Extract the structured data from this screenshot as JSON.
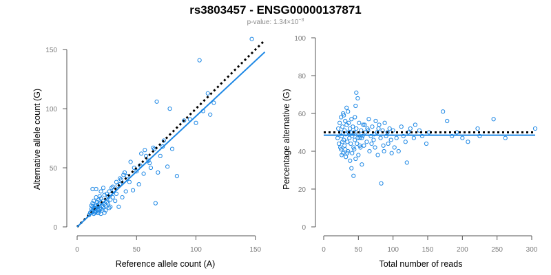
{
  "header": {
    "title": "rs3803457 - ENSG00000137871",
    "subtitle_prefix": "p-value: 1.34×10",
    "subtitle_exp": "−3"
  },
  "colors": {
    "points": "#1e88e5",
    "fit": "#1e88e5",
    "reference": "#000000"
  },
  "chart_data": [
    {
      "type": "scatter",
      "xlabel": "Reference allele count (A)",
      "ylabel": "Alternative allele count (G)",
      "xlim": [
        0,
        160
      ],
      "ylim": [
        0,
        160
      ],
      "xticks": [
        0,
        50,
        100,
        150
      ],
      "yticks": [
        0,
        50,
        100,
        150
      ],
      "fit_line": {
        "x": [
          0,
          158
        ],
        "y": [
          0,
          148
        ]
      },
      "reference_line": {
        "x": [
          0,
          158
        ],
        "y": [
          0,
          158
        ]
      },
      "points": [
        [
          12,
          12
        ],
        [
          13,
          14
        ],
        [
          12,
          18
        ],
        [
          14,
          11
        ],
        [
          15,
          16
        ],
        [
          16,
          13
        ],
        [
          13,
          20
        ],
        [
          17,
          17
        ],
        [
          18,
          12
        ],
        [
          14,
          22
        ],
        [
          19,
          20
        ],
        [
          20,
          15
        ],
        [
          16,
          25
        ],
        [
          21,
          18
        ],
        [
          22,
          22
        ],
        [
          18,
          14
        ],
        [
          23,
          12
        ],
        [
          15,
          12
        ],
        [
          17,
          21
        ],
        [
          20,
          11
        ],
        [
          24,
          18
        ],
        [
          25,
          21
        ],
        [
          13,
          32
        ],
        [
          16,
          32
        ],
        [
          26,
          26
        ],
        [
          27,
          16
        ],
        [
          19,
          26
        ],
        [
          28,
          23
        ],
        [
          30,
          25
        ],
        [
          31,
          31
        ],
        [
          33,
          28
        ],
        [
          34,
          35
        ],
        [
          22,
          33
        ],
        [
          35,
          17
        ],
        [
          37,
          40
        ],
        [
          38,
          25
        ],
        [
          40,
          46
        ],
        [
          42,
          43
        ],
        [
          44,
          38
        ],
        [
          45,
          55
        ],
        [
          47,
          31
        ],
        [
          50,
          47
        ],
        [
          52,
          36
        ],
        [
          54,
          62
        ],
        [
          56,
          45
        ],
        [
          58,
          60
        ],
        [
          60,
          56
        ],
        [
          62,
          50
        ],
        [
          64,
          67
        ],
        [
          66,
          20
        ],
        [
          67,
          106
        ],
        [
          68,
          46
        ],
        [
          70,
          60
        ],
        [
          73,
          73
        ],
        [
          76,
          51
        ],
        [
          78,
          100
        ],
        [
          80,
          66
        ],
        [
          84,
          43
        ],
        [
          90,
          90
        ],
        [
          95,
          91
        ],
        [
          100,
          88
        ],
        [
          103,
          141
        ],
        [
          106,
          98
        ],
        [
          110,
          113
        ],
        [
          112,
          95
        ],
        [
          115,
          105
        ],
        [
          147,
          159
        ],
        [
          20,
          30
        ],
        [
          25,
          28
        ],
        [
          29,
          33
        ],
        [
          32,
          22
        ],
        [
          36,
          36
        ],
        [
          39,
          44
        ],
        [
          41,
          30
        ],
        [
          12,
          15
        ],
        [
          13,
          13
        ],
        [
          14,
          16
        ],
        [
          15,
          13
        ],
        [
          16,
          18
        ],
        [
          17,
          12
        ],
        [
          18,
          19
        ],
        [
          19,
          15
        ],
        [
          21,
          14
        ],
        [
          22,
          17
        ],
        [
          23,
          19
        ],
        [
          24,
          14
        ],
        [
          26,
          20
        ],
        [
          28,
          17
        ],
        [
          10,
          10
        ],
        [
          11,
          12
        ],
        [
          13,
          17
        ],
        [
          15,
          18
        ],
        [
          18,
          23
        ],
        [
          20,
          24
        ],
        [
          23,
          27
        ],
        [
          27,
          30
        ],
        [
          30,
          34
        ],
        [
          33,
          38
        ],
        [
          36,
          41
        ],
        [
          48,
          50
        ],
        [
          53,
          52
        ],
        [
          57,
          65
        ],
        [
          61,
          54
        ],
        [
          65,
          66
        ],
        [
          72,
          68
        ]
      ]
    },
    {
      "type": "scatter",
      "xlabel": "Total number of reads",
      "ylabel": "Percentage alternative (G)",
      "xlim": [
        0,
        300
      ],
      "ylim": [
        0,
        100
      ],
      "xticks": [
        0,
        50,
        100,
        150,
        200,
        250,
        300
      ],
      "yticks": [
        0,
        20,
        40,
        60,
        80,
        100
      ],
      "fit_line": {
        "x": [
          0,
          305
        ],
        "y": [
          48.5,
          48.5
        ]
      },
      "reference_line": {
        "x": [
          0,
          305
        ],
        "y": [
          50,
          50
        ]
      },
      "points": [
        [
          20,
          47
        ],
        [
          21,
          52
        ],
        [
          22,
          44
        ],
        [
          23,
          55
        ],
        [
          24,
          50
        ],
        [
          25,
          41
        ],
        [
          25,
          58
        ],
        [
          26,
          48
        ],
        [
          27,
          53
        ],
        [
          28,
          39
        ],
        [
          28,
          60
        ],
        [
          29,
          46
        ],
        [
          30,
          51
        ],
        [
          30,
          43
        ],
        [
          31,
          56
        ],
        [
          32,
          37
        ],
        [
          32,
          49
        ],
        [
          33,
          54
        ],
        [
          34,
          45
        ],
        [
          35,
          61
        ],
        [
          35,
          40
        ],
        [
          36,
          50
        ],
        [
          37,
          47
        ],
        [
          38,
          52
        ],
        [
          38,
          35
        ],
        [
          39,
          44
        ],
        [
          40,
          57
        ],
        [
          40,
          31
        ],
        [
          41,
          48
        ],
        [
          42,
          53
        ],
        [
          43,
          27
        ],
        [
          43,
          42
        ],
        [
          44,
          50
        ],
        [
          45,
          46
        ],
        [
          45,
          58
        ],
        [
          46,
          36
        ],
        [
          47,
          71
        ],
        [
          47,
          52
        ],
        [
          48,
          44
        ],
        [
          49,
          68
        ],
        [
          50,
          49
        ],
        [
          50,
          38
        ],
        [
          51,
          55
        ],
        [
          52,
          47
        ],
        [
          53,
          42
        ],
        [
          54,
          51
        ],
        [
          55,
          33
        ],
        [
          56,
          48
        ],
        [
          57,
          54
        ],
        [
          58,
          43
        ],
        [
          60,
          50
        ],
        [
          62,
          45
        ],
        [
          63,
          52
        ],
        [
          65,
          57
        ],
        [
          66,
          40
        ],
        [
          68,
          48
        ],
        [
          70,
          53
        ],
        [
          72,
          46
        ],
        [
          74,
          42
        ],
        [
          75,
          56
        ],
        [
          77,
          50
        ],
        [
          78,
          38
        ],
        [
          80,
          54
        ],
        [
          82,
          47
        ],
        [
          83,
          23
        ],
        [
          85,
          51
        ],
        [
          87,
          40
        ],
        [
          88,
          55
        ],
        [
          90,
          48
        ],
        [
          93,
          44
        ],
        [
          95,
          52
        ],
        [
          98,
          39
        ],
        [
          100,
          51
        ],
        [
          102,
          42
        ],
        [
          105,
          47
        ],
        [
          108,
          40
        ],
        [
          112,
          53
        ],
        [
          115,
          48
        ],
        [
          118,
          45
        ],
        [
          120,
          34
        ],
        [
          122,
          50
        ],
        [
          125,
          52
        ],
        [
          130,
          47
        ],
        [
          132,
          54
        ],
        [
          138,
          51
        ],
        [
          142,
          48
        ],
        [
          148,
          44
        ],
        [
          152,
          50
        ],
        [
          172,
          61
        ],
        [
          178,
          56
        ],
        [
          185,
          48
        ],
        [
          192,
          50
        ],
        [
          200,
          47
        ],
        [
          208,
          45
        ],
        [
          222,
          52
        ],
        [
          225,
          48
        ],
        [
          245,
          57
        ],
        [
          262,
          47
        ],
        [
          305,
          52
        ],
        [
          24,
          42
        ],
        [
          26,
          38
        ],
        [
          27,
          45
        ],
        [
          29,
          59
        ],
        [
          31,
          41
        ],
        [
          33,
          63
        ],
        [
          34,
          39
        ],
        [
          36,
          55
        ],
        [
          39,
          50
        ],
        [
          41,
          39
        ],
        [
          44,
          41
        ],
        [
          46,
          64
        ],
        [
          49,
          47
        ],
        [
          52,
          43
        ],
        [
          55,
          47
        ],
        [
          59,
          54
        ],
        [
          64,
          51
        ],
        [
          69,
          44
        ],
        [
          73,
          49
        ],
        [
          79,
          52
        ],
        [
          86,
          43
        ],
        [
          92,
          50
        ],
        [
          97,
          46
        ]
      ]
    }
  ]
}
